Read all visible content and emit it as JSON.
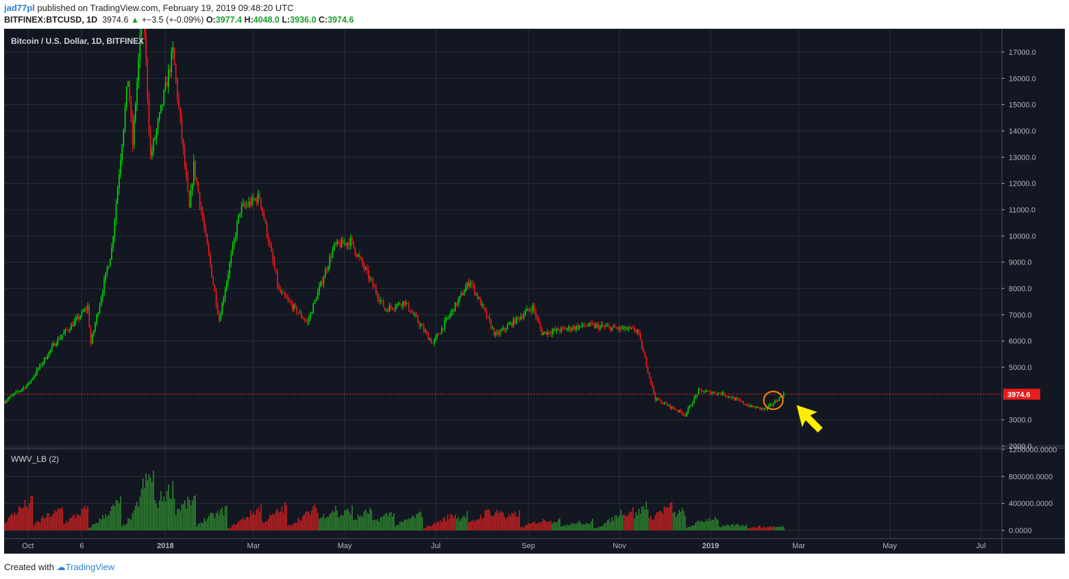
{
  "header": {
    "user": "jad77pl",
    "published": "published on TradingView.com, February 19, 2019 09:48:20 UTC",
    "symbol": "BITFINEX:BTCUSD, 1D",
    "last": "3974.6",
    "change": "+−3.5 (+-0.09%)",
    "o_label": "O:",
    "o": "3977.4",
    "h_label": "H:",
    "h": "4048.0",
    "l_label": "L:",
    "l": "3936.0",
    "c_label": "C:",
    "c": "3974.6"
  },
  "footer": {
    "created_with": "Created with",
    "brand": "TradingView"
  },
  "colors": {
    "background": "#131722",
    "up": "#00e600",
    "down": "#ff1a1a",
    "grid": "#2a2e39",
    "text": "#b2b5be",
    "price_line": "#ff3333",
    "annotation_arrow": "#ffee00",
    "annotation_circle": "#ff8c00"
  },
  "chart_data": [
    {
      "type": "candlestick",
      "title": "Bitcoin / U.S. Dollar, 1D, BITFINEX",
      "x_ticks": [
        "Oct",
        "6",
        "2018",
        "Mar",
        "May",
        "Jul",
        "Sep",
        "Nov",
        "2019",
        "Mar",
        "May",
        "Jul"
      ],
      "y_ticks": [
        "17000.0",
        "16000.0",
        "15000.0",
        "14000.0",
        "13000.0",
        "12000.0",
        "11000.0",
        "10000.0",
        "9000.0",
        "8000.0",
        "7000.0",
        "6000.0",
        "5000.0",
        "3000.0",
        "2000.0"
      ],
      "ylim": [
        2000,
        18000
      ],
      "current_price_label": "3974.6",
      "current_price": 3974.6,
      "x_range": [
        "2017-09-15",
        "2019-07-15"
      ],
      "series": [
        {
          "date": "2017-09-15",
          "close": 3700
        },
        {
          "date": "2017-10-01",
          "close": 4350
        },
        {
          "date": "2017-10-20",
          "close": 6000
        },
        {
          "date": "2017-11-01",
          "close": 6700
        },
        {
          "date": "2017-11-10",
          "close": 7300
        },
        {
          "date": "2017-11-12",
          "close": 5900
        },
        {
          "date": "2017-11-26",
          "close": 9500
        },
        {
          "date": "2017-12-07",
          "close": 16000
        },
        {
          "date": "2017-12-10",
          "close": 13500
        },
        {
          "date": "2017-12-17",
          "close": 19000
        },
        {
          "date": "2017-12-22",
          "close": 13000
        },
        {
          "date": "2017-12-28",
          "close": 14500
        },
        {
          "date": "2018-01-06",
          "close": 17000
        },
        {
          "date": "2018-01-17",
          "close": 11000
        },
        {
          "date": "2018-01-20",
          "close": 12700
        },
        {
          "date": "2018-02-06",
          "close": 6800
        },
        {
          "date": "2018-02-20",
          "close": 11000
        },
        {
          "date": "2018-03-05",
          "close": 11500
        },
        {
          "date": "2018-03-18",
          "close": 7900
        },
        {
          "date": "2018-04-06",
          "close": 6700
        },
        {
          "date": "2018-04-24",
          "close": 9600
        },
        {
          "date": "2018-05-05",
          "close": 9800
        },
        {
          "date": "2018-05-28",
          "close": 7200
        },
        {
          "date": "2018-06-10",
          "close": 7500
        },
        {
          "date": "2018-06-29",
          "close": 5900
        },
        {
          "date": "2018-07-24",
          "close": 8300
        },
        {
          "date": "2018-08-10",
          "close": 6200
        },
        {
          "date": "2018-09-04",
          "close": 7300
        },
        {
          "date": "2018-09-10",
          "close": 6300
        },
        {
          "date": "2018-10-10",
          "close": 6600
        },
        {
          "date": "2018-11-13",
          "close": 6400
        },
        {
          "date": "2018-11-25",
          "close": 3800
        },
        {
          "date": "2018-12-15",
          "close": 3200
        },
        {
          "date": "2018-12-24",
          "close": 4100
        },
        {
          "date": "2019-01-09",
          "close": 4000
        },
        {
          "date": "2019-01-28",
          "close": 3500
        },
        {
          "date": "2019-02-07",
          "close": 3400
        },
        {
          "date": "2019-02-19",
          "close": 3974.6
        }
      ]
    },
    {
      "type": "bar",
      "title": "WWV_LB (2)",
      "y_ticks": [
        "1200000.0000",
        "800000.0000",
        "400000.0000",
        "0.0000"
      ],
      "ylim": [
        0,
        1200000
      ],
      "series": [
        {
          "date": "2017-09-15",
          "value": 700000
        },
        {
          "date": "2017-10-20",
          "value": 400000
        },
        {
          "date": "2017-11-12",
          "value": 420000
        },
        {
          "date": "2017-12-10",
          "value": 620000
        },
        {
          "date": "2017-12-17",
          "value": 1150000
        },
        {
          "date": "2018-01-17",
          "value": 620000
        },
        {
          "date": "2018-02-06",
          "value": 400000
        },
        {
          "date": "2018-03-18",
          "value": 450000
        },
        {
          "date": "2018-04-24",
          "value": 420000
        },
        {
          "date": "2018-06-29",
          "value": 300000
        },
        {
          "date": "2018-07-24",
          "value": 300000
        },
        {
          "date": "2018-08-10",
          "value": 400000
        },
        {
          "date": "2018-09-10",
          "value": 230000
        },
        {
          "date": "2018-10-10",
          "value": 140000
        },
        {
          "date": "2018-11-25",
          "value": 550000
        },
        {
          "date": "2018-12-15",
          "value": 350000
        },
        {
          "date": "2018-12-24",
          "value": 330000
        },
        {
          "date": "2019-01-28",
          "value": 70000
        },
        {
          "date": "2019-02-19",
          "value": 80000
        }
      ]
    }
  ]
}
